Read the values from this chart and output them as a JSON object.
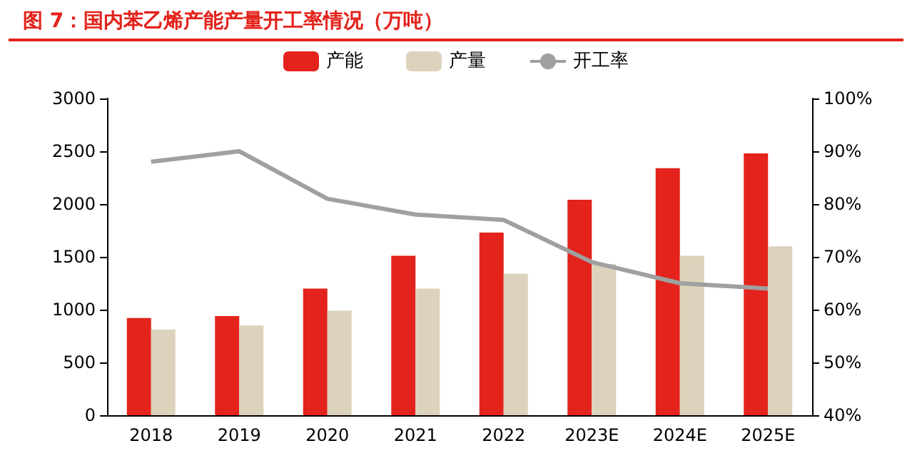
{
  "chart_data": {
    "type": "bar",
    "title": "图 7：国内苯乙烯产能产量开工率情况（万吨）",
    "categories": [
      "2018",
      "2019",
      "2020",
      "2021",
      "2022",
      "2023E",
      "2024E",
      "2025E"
    ],
    "series": [
      {
        "name": "产能",
        "color": "#e3231c",
        "values": [
          920,
          940,
          1200,
          1510,
          1730,
          2040,
          2340,
          2480
        ]
      },
      {
        "name": "产量",
        "color": "#ddd3bc",
        "values": [
          810,
          850,
          990,
          1200,
          1340,
          1430,
          1510,
          1600
        ]
      },
      {
        "name": "开工率",
        "type": "line",
        "axis": "y2",
        "color": "#a0a0a0",
        "marker": "none",
        "values": [
          88,
          90,
          81,
          78,
          77,
          69,
          65,
          64
        ]
      }
    ],
    "ylim": [
      0,
      3000
    ],
    "yticks": [
      0,
      500,
      1000,
      1500,
      2000,
      2500,
      3000
    ],
    "y2lim": [
      40,
      100
    ],
    "y2ticks": [
      {
        "value": 40,
        "label": "40%"
      },
      {
        "value": 50,
        "label": "50%"
      },
      {
        "value": 60,
        "label": "60%"
      },
      {
        "value": 70,
        "label": "70%"
      },
      {
        "value": 80,
        "label": "80%"
      },
      {
        "value": 90,
        "label": "90%"
      },
      {
        "value": 100,
        "label": "100%"
      }
    ],
    "grid": false,
    "legend": "top"
  }
}
